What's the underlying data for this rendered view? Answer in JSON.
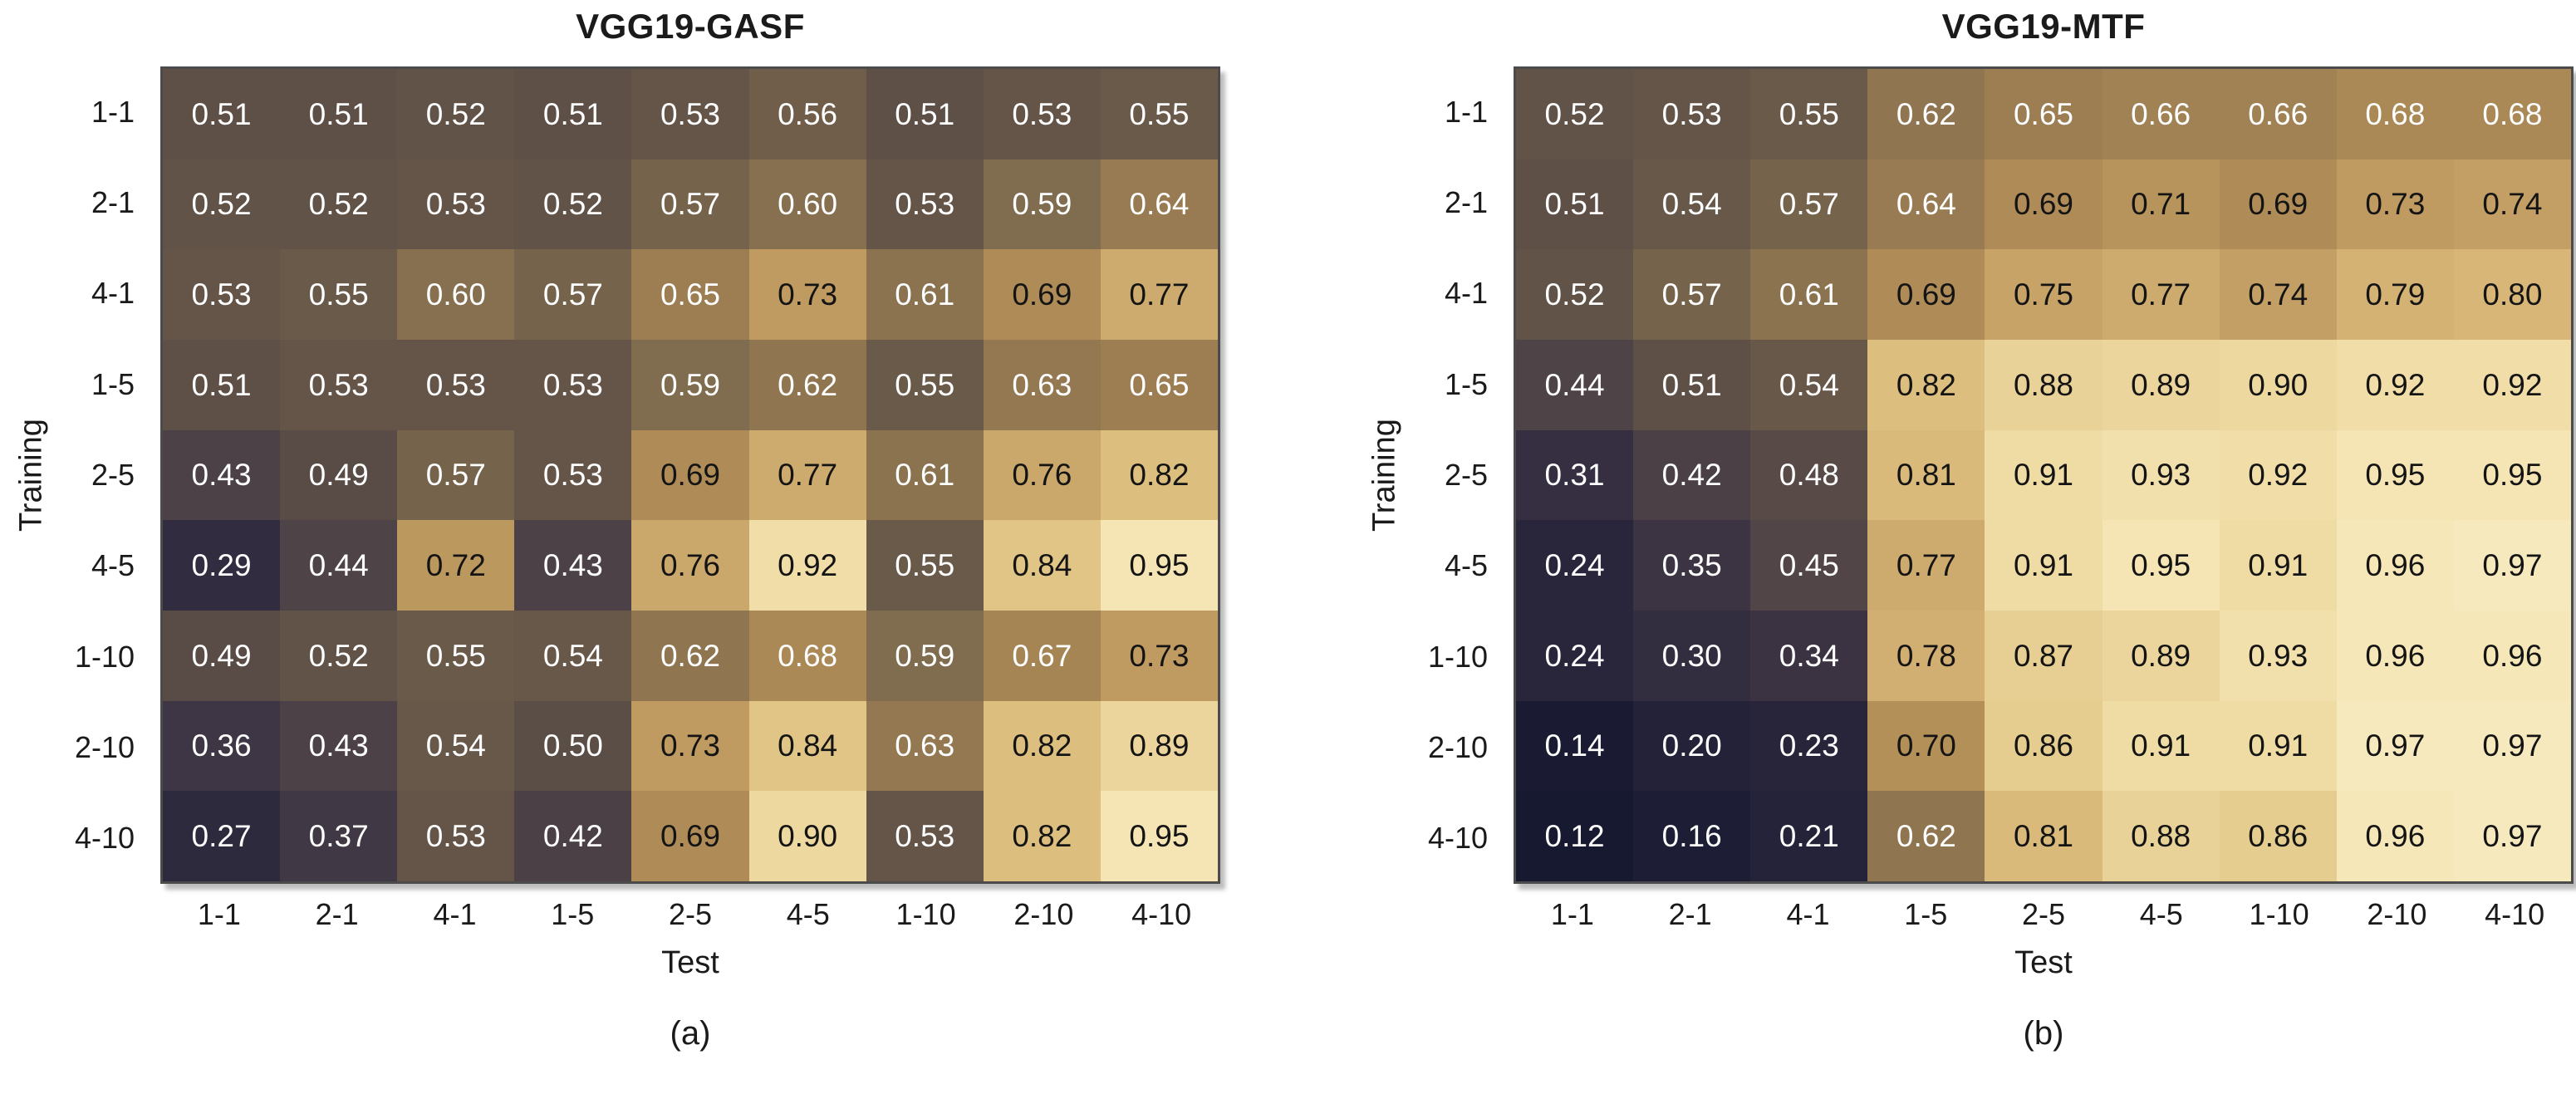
{
  "figure": {
    "background": "#ffffff",
    "text_color": "#1a1a1a",
    "frame_color": "#4b4b4b",
    "shadow_color": "#bdbdbd"
  },
  "chart_data": [
    {
      "type": "heatmap",
      "title": "VGG19-GASF",
      "caption": "(a)",
      "xlabel": "Test",
      "ylabel": "Training",
      "x_categories": [
        "1-1",
        "2-1",
        "4-1",
        "1-5",
        "2-5",
        "4-5",
        "1-10",
        "2-10",
        "4-10"
      ],
      "y_categories": [
        "1-1",
        "2-1",
        "4-1",
        "1-5",
        "2-5",
        "4-5",
        "1-10",
        "2-10",
        "4-10"
      ],
      "values": [
        [
          0.51,
          0.51,
          0.52,
          0.51,
          0.53,
          0.56,
          0.51,
          0.53,
          0.55
        ],
        [
          0.52,
          0.52,
          0.53,
          0.52,
          0.57,
          0.6,
          0.53,
          0.59,
          0.64
        ],
        [
          0.53,
          0.55,
          0.6,
          0.57,
          0.65,
          0.73,
          0.61,
          0.69,
          0.77
        ],
        [
          0.51,
          0.53,
          0.53,
          0.53,
          0.59,
          0.62,
          0.55,
          0.63,
          0.65
        ],
        [
          0.43,
          0.49,
          0.57,
          0.53,
          0.69,
          0.77,
          0.61,
          0.76,
          0.82
        ],
        [
          0.29,
          0.44,
          0.72,
          0.43,
          0.76,
          0.92,
          0.55,
          0.84,
          0.95
        ],
        [
          0.49,
          0.52,
          0.55,
          0.54,
          0.62,
          0.68,
          0.59,
          0.67,
          0.73
        ],
        [
          0.36,
          0.43,
          0.54,
          0.5,
          0.73,
          0.84,
          0.63,
          0.82,
          0.89
        ],
        [
          0.27,
          0.37,
          0.53,
          0.42,
          0.69,
          0.9,
          0.53,
          0.82,
          0.95
        ]
      ],
      "value_decimals": 2,
      "cell_text_rule": {
        "black_text_min_value": 0.69,
        "dark_text": "#141414",
        "light_text": "#ffffff"
      },
      "colormap_stops": [
        [
          0.1,
          "#14172e"
        ],
        [
          0.2,
          "#232239"
        ],
        [
          0.3,
          "#332d40"
        ],
        [
          0.4,
          "#463c46"
        ],
        [
          0.5,
          "#5b4e47"
        ],
        [
          0.55,
          "#6a5a49"
        ],
        [
          0.6,
          "#86704f"
        ],
        [
          0.65,
          "#9d7e53"
        ],
        [
          0.7,
          "#b39058"
        ],
        [
          0.75,
          "#c7a368"
        ],
        [
          0.8,
          "#d7b677"
        ],
        [
          0.85,
          "#e3c98b"
        ],
        [
          0.9,
          "#edd8a0"
        ],
        [
          0.95,
          "#f5e5b4"
        ],
        [
          1.0,
          "#fbf0ce"
        ]
      ]
    },
    {
      "type": "heatmap",
      "title": "VGG19-MTF",
      "caption": "(b)",
      "xlabel": "Test",
      "ylabel": "Training",
      "x_categories": [
        "1-1",
        "2-1",
        "4-1",
        "1-5",
        "2-5",
        "4-5",
        "1-10",
        "2-10",
        "4-10"
      ],
      "y_categories": [
        "1-1",
        "2-1",
        "4-1",
        "1-5",
        "2-5",
        "4-5",
        "1-10",
        "2-10",
        "4-10"
      ],
      "values": [
        [
          0.52,
          0.53,
          0.55,
          0.62,
          0.65,
          0.66,
          0.66,
          0.68,
          0.68
        ],
        [
          0.51,
          0.54,
          0.57,
          0.64,
          0.69,
          0.71,
          0.69,
          0.73,
          0.74
        ],
        [
          0.52,
          0.57,
          0.61,
          0.69,
          0.75,
          0.77,
          0.74,
          0.79,
          0.8
        ],
        [
          0.44,
          0.51,
          0.54,
          0.82,
          0.88,
          0.89,
          0.9,
          0.92,
          0.92
        ],
        [
          0.31,
          0.42,
          0.48,
          0.81,
          0.91,
          0.93,
          0.92,
          0.95,
          0.95
        ],
        [
          0.24,
          0.35,
          0.45,
          0.77,
          0.91,
          0.95,
          0.91,
          0.96,
          0.97
        ],
        [
          0.24,
          0.3,
          0.34,
          0.78,
          0.87,
          0.89,
          0.93,
          0.96,
          0.96
        ],
        [
          0.14,
          0.2,
          0.23,
          0.7,
          0.86,
          0.91,
          0.91,
          0.97,
          0.97
        ],
        [
          0.12,
          0.16,
          0.21,
          0.62,
          0.81,
          0.88,
          0.86,
          0.96,
          0.97
        ]
      ],
      "value_decimals": 2,
      "cell_text_rule": {
        "black_text_min_value": 0.69,
        "dark_text": "#141414",
        "light_text": "#ffffff"
      },
      "colormap_stops": [
        [
          0.1,
          "#14172e"
        ],
        [
          0.2,
          "#232239"
        ],
        [
          0.3,
          "#332d40"
        ],
        [
          0.4,
          "#463c46"
        ],
        [
          0.5,
          "#5b4e47"
        ],
        [
          0.55,
          "#6a5a49"
        ],
        [
          0.6,
          "#86704f"
        ],
        [
          0.65,
          "#9d7e53"
        ],
        [
          0.7,
          "#b39058"
        ],
        [
          0.75,
          "#c7a368"
        ],
        [
          0.8,
          "#d7b677"
        ],
        [
          0.85,
          "#e3c98b"
        ],
        [
          0.9,
          "#edd8a0"
        ],
        [
          0.95,
          "#f5e5b4"
        ],
        [
          1.0,
          "#fbf0ce"
        ]
      ]
    }
  ]
}
